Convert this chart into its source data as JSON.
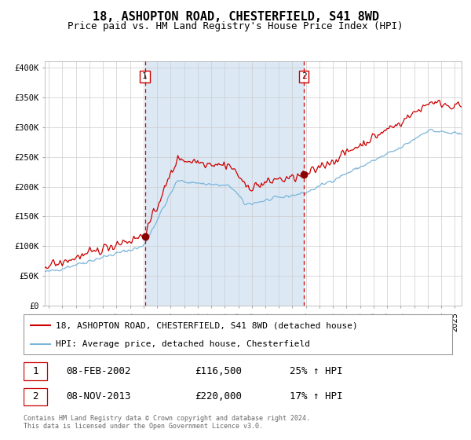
{
  "title": "18, ASHOPTON ROAD, CHESTERFIELD, S41 8WD",
  "subtitle": "Price paid vs. HM Land Registry's House Price Index (HPI)",
  "legend_line1": "18, ASHOPTON ROAD, CHESTERFIELD, S41 8WD (detached house)",
  "legend_line2": "HPI: Average price, detached house, Chesterfield",
  "transaction1_date": "08-FEB-2002",
  "transaction1_price": 116500,
  "transaction1_label": "25% ↑ HPI",
  "transaction2_date": "08-NOV-2013",
  "transaction2_price": 220000,
  "transaction2_label": "17% ↑ HPI",
  "transaction1_x": 2002.1,
  "transaction2_x": 2013.85,
  "hpi_color": "#7ab5d9",
  "property_color": "#cc0000",
  "dot_color": "#8b0000",
  "vline_color": "#cc0000",
  "bg_highlight_color": "#dce9f5",
  "grid_color": "#cccccc",
  "ylim": [
    0,
    410000
  ],
  "xlim_start": 1994.7,
  "xlim_end": 2025.5,
  "yticks": [
    0,
    50000,
    100000,
    150000,
    200000,
    250000,
    300000,
    350000,
    400000
  ],
  "ytick_labels": [
    "£0",
    "£50K",
    "£100K",
    "£150K",
    "£200K",
    "£250K",
    "£300K",
    "£350K",
    "£400K"
  ],
  "xticks": [
    1995,
    1996,
    1997,
    1998,
    1999,
    2000,
    2001,
    2002,
    2003,
    2004,
    2005,
    2006,
    2007,
    2008,
    2009,
    2010,
    2011,
    2012,
    2013,
    2014,
    2015,
    2016,
    2017,
    2018,
    2019,
    2020,
    2021,
    2022,
    2023,
    2024,
    2025
  ],
  "footnote": "Contains HM Land Registry data © Crown copyright and database right 2024.\nThis data is licensed under the Open Government Licence v3.0.",
  "title_fontsize": 11,
  "subtitle_fontsize": 9,
  "tick_fontsize": 7.5,
  "legend_fontsize": 8,
  "info_fontsize": 9
}
